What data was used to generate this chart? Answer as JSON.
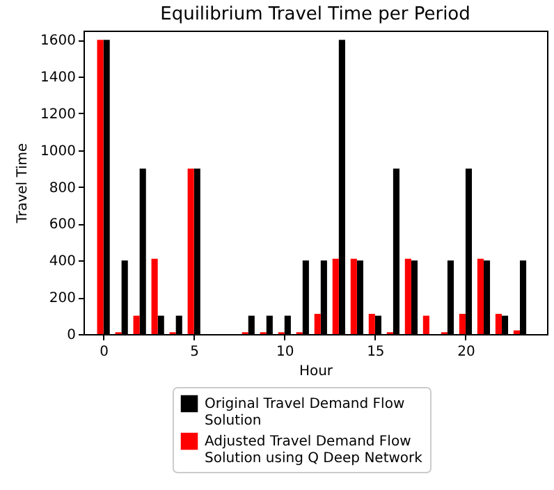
{
  "chart_data": {
    "type": "bar",
    "title": "Equilibrium Travel Time per Period",
    "xlabel": "Hour",
    "ylabel": "Travel Time",
    "x": [
      0,
      1,
      2,
      3,
      4,
      5,
      6,
      7,
      8,
      9,
      10,
      11,
      12,
      13,
      14,
      15,
      16,
      17,
      18,
      19,
      20,
      21,
      22,
      23
    ],
    "series": [
      {
        "name": "Original Travel Demand Flow Solution",
        "color": "#000000",
        "values": [
          1600,
          400,
          900,
          100,
          100,
          900,
          0,
          0,
          100,
          100,
          100,
          400,
          400,
          1600,
          400,
          100,
          900,
          400,
          0,
          400,
          900,
          400,
          100,
          400
        ]
      },
      {
        "name": "Adjusted Travel Demand Flow Solution using Q Deep Network",
        "color": "#ff0000",
        "values": [
          1600,
          10,
          100,
          410,
          10,
          900,
          0,
          0,
          10,
          10,
          10,
          10,
          110,
          410,
          410,
          110,
          10,
          410,
          100,
          10,
          110,
          410,
          110,
          20
        ]
      }
    ],
    "xlim": [
      -1.1,
      24.5
    ],
    "xticks": [
      0,
      5,
      10,
      15,
      20
    ],
    "ylim": [
      0,
      1650
    ],
    "yticks": [
      0,
      200,
      400,
      600,
      800,
      1000,
      1200,
      1400,
      1600
    ],
    "legend": "bottom",
    "grid": false
  }
}
